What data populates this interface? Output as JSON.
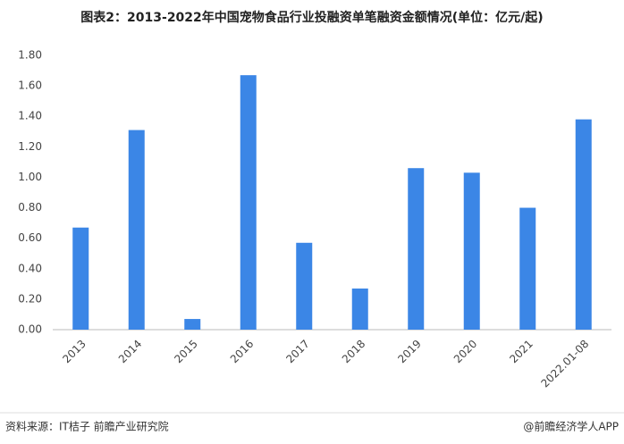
{
  "chart_data": {
    "type": "bar",
    "title": "图表2：2013-2022年中国宠物食品行业投融资单笔融资金额情况(单位：亿元/起)",
    "categories": [
      "2013",
      "2014",
      "2015",
      "2016",
      "2017",
      "2018",
      "2019",
      "2020",
      "2021",
      "2022.01-08"
    ],
    "values": [
      0.67,
      1.31,
      0.07,
      1.67,
      0.57,
      0.27,
      1.06,
      1.03,
      0.8,
      1.38
    ],
    "color": "#3b86e6",
    "ylim": [
      0,
      1.8
    ],
    "yticks": [
      {
        "value": 0,
        "label": "0.00"
      },
      {
        "value": 0.2,
        "label": "0.20"
      },
      {
        "value": 0.4,
        "label": "0.40"
      },
      {
        "value": 0.6,
        "label": "0.60"
      },
      {
        "value": 0.8,
        "label": "0.80"
      },
      {
        "value": 1.0,
        "label": "1.00"
      },
      {
        "value": 1.2,
        "label": "1.20"
      },
      {
        "value": 1.4,
        "label": "1.40"
      },
      {
        "value": 1.6,
        "label": "1.60"
      },
      {
        "value": 1.8,
        "label": "1.80"
      }
    ],
    "grid": false
  },
  "footer": {
    "source": "资料来源：IT桔子 前瞻产业研究院",
    "brand": "@前瞻经济学人APP"
  }
}
